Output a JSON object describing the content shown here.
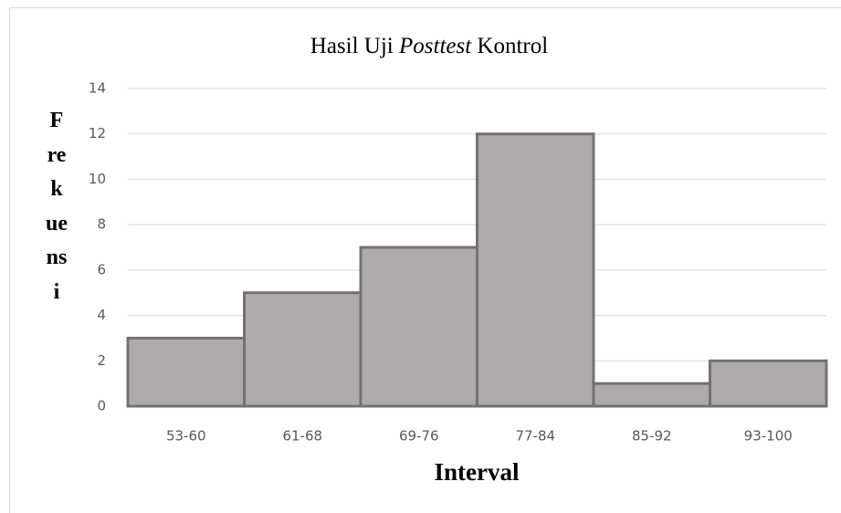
{
  "chart_data": {
    "type": "bar",
    "title": [
      "Hasil Uji ",
      "Posttest",
      " Kontrol"
    ],
    "x_label": "Interval",
    "y_label": "Frekuensi",
    "categories": [
      "53-60",
      "61-68",
      "69-76",
      "77-84",
      "85-92",
      "93-100"
    ],
    "values": [
      3,
      5,
      7,
      12,
      1,
      2
    ],
    "color": "#aeaaaa",
    "ylim": [
      0,
      14
    ],
    "yticks": [
      0,
      2,
      4,
      6,
      8,
      10,
      12,
      14
    ],
    "grid": true
  }
}
